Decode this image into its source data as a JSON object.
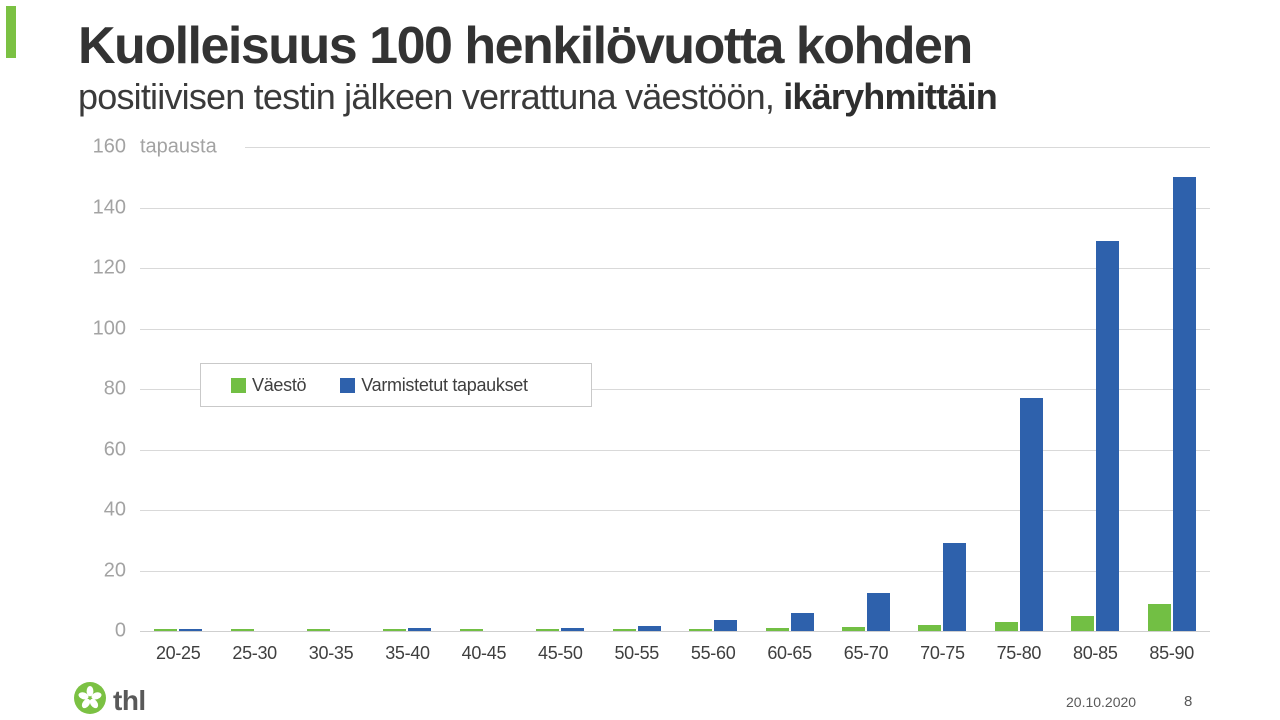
{
  "slide": {
    "title_line1": "Kuolleisuus 100 henkilövuotta kohden",
    "subtitle_regular": "positiivisen testin jälkeen verrattuna väestöön, ",
    "subtitle_bold": "ikäryhmittäin",
    "accent_color": "#7BC143"
  },
  "chart_data": {
    "type": "bar",
    "title": "",
    "unit_label": "tapausta",
    "categories": [
      "20-25",
      "25-30",
      "30-35",
      "35-40",
      "40-45",
      "45-50",
      "50-55",
      "55-60",
      "60-65",
      "65-70",
      "70-75",
      "75-80",
      "80-85",
      "85-90"
    ],
    "series": [
      {
        "name": "Väestö",
        "color": "#72BF44",
        "values": [
          0.5,
          0.5,
          0.5,
          0.5,
          0.5,
          0.5,
          0.6,
          0.7,
          0.9,
          1.3,
          2,
          3,
          5,
          9
        ]
      },
      {
        "name": "Varmistetut tapaukset",
        "color": "#2E61AC",
        "values": [
          0.8,
          0,
          0,
          1,
          0,
          1,
          1.8,
          3.5,
          6,
          12.5,
          29,
          77,
          129,
          150
        ]
      }
    ],
    "ylim": [
      0,
      160
    ],
    "ytick_interval": 20,
    "yticks": [
      0,
      20,
      40,
      60,
      80,
      100,
      120,
      140,
      160
    ],
    "grid": true,
    "legend_position": "inside-left"
  },
  "footer": {
    "logo_text": "thl",
    "date": "20.10.2020",
    "page": "8"
  }
}
